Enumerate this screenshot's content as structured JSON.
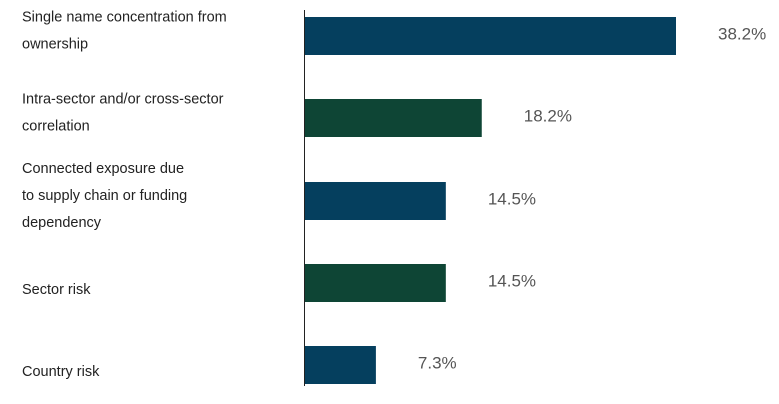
{
  "chart_data": {
    "type": "bar",
    "orientation": "horizontal",
    "categories": [
      [
        "Single name concentration from",
        "ownership"
      ],
      [
        "Intra-sector and/or cross-sector",
        "correlation"
      ],
      [
        "Connected exposure due",
        "to supply chain or funding",
        "dependency"
      ],
      [
        "Sector risk"
      ],
      [
        "Country risk"
      ]
    ],
    "values": [
      38.2,
      18.2,
      14.5,
      14.5,
      7.3
    ],
    "value_labels": [
      "38.2%",
      "18.2%",
      "14.5%",
      "14.5%",
      "7.3%"
    ],
    "bar_colors": [
      "#053f5e",
      "#0e4535",
      "#053f5e",
      "#0e4535",
      "#053f5e"
    ],
    "xlim": [
      0,
      38.2
    ],
    "grid": false,
    "legend": "none"
  }
}
